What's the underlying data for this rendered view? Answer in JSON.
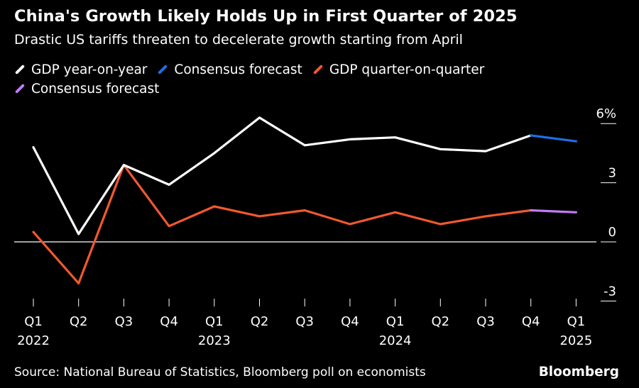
{
  "header": {
    "title": "China's Growth Likely Holds Up in First Quarter of 2025",
    "subtitle": "Drastic US tariffs threaten to decelerate growth starting from April"
  },
  "legend": [
    {
      "label": "GDP year-on-year",
      "color": "#ffffff"
    },
    {
      "label": "Consensus forecast",
      "color": "#1f6fe5"
    },
    {
      "label": "GDP quarter-on-quarter",
      "color": "#f0582f"
    },
    {
      "label": "Consensus forecast",
      "color": "#c07cf5"
    }
  ],
  "footer": {
    "source": "Source: National Bureau of Statistics, Bloomberg poll on economists",
    "brand": "Bloomberg"
  },
  "chart_data": {
    "type": "line",
    "title": "China's Growth Likely Holds Up in First Quarter of 2025",
    "categories": [
      "Q1",
      "Q2",
      "Q3",
      "Q4",
      "Q1",
      "Q2",
      "Q3",
      "Q4",
      "Q1",
      "Q2",
      "Q3",
      "Q4",
      "Q1"
    ],
    "year_labels": [
      {
        "index": 0,
        "label": "2022"
      },
      {
        "index": 4,
        "label": "2023"
      },
      {
        "index": 8,
        "label": "2024"
      },
      {
        "index": 12,
        "label": "2025"
      }
    ],
    "series": [
      {
        "name": "GDP year-on-year",
        "color": "#ffffff",
        "values": [
          4.8,
          0.4,
          3.9,
          2.9,
          4.5,
          6.3,
          4.9,
          5.2,
          5.3,
          4.7,
          4.6,
          5.4,
          null
        ]
      },
      {
        "name": "Consensus forecast",
        "color": "#1f6fe5",
        "values": [
          null,
          null,
          null,
          null,
          null,
          null,
          null,
          null,
          null,
          null,
          null,
          5.4,
          5.1
        ]
      },
      {
        "name": "GDP quarter-on-quarter",
        "color": "#f0582f",
        "values": [
          0.5,
          -2.1,
          3.9,
          0.8,
          1.8,
          1.3,
          1.6,
          0.9,
          1.5,
          0.9,
          1.3,
          1.6,
          null
        ]
      },
      {
        "name": "Consensus forecast",
        "color": "#c07cf5",
        "values": [
          null,
          null,
          null,
          null,
          null,
          null,
          null,
          null,
          null,
          null,
          null,
          1.6,
          1.5
        ]
      }
    ],
    "yticks": [
      {
        "value": 6,
        "label": "6%"
      },
      {
        "value": 3,
        "label": "3"
      },
      {
        "value": 0,
        "label": "0"
      },
      {
        "value": -3,
        "label": "-3"
      }
    ],
    "ylim": [
      -3,
      6
    ],
    "xlabel": "",
    "ylabel": "",
    "grid": false
  }
}
